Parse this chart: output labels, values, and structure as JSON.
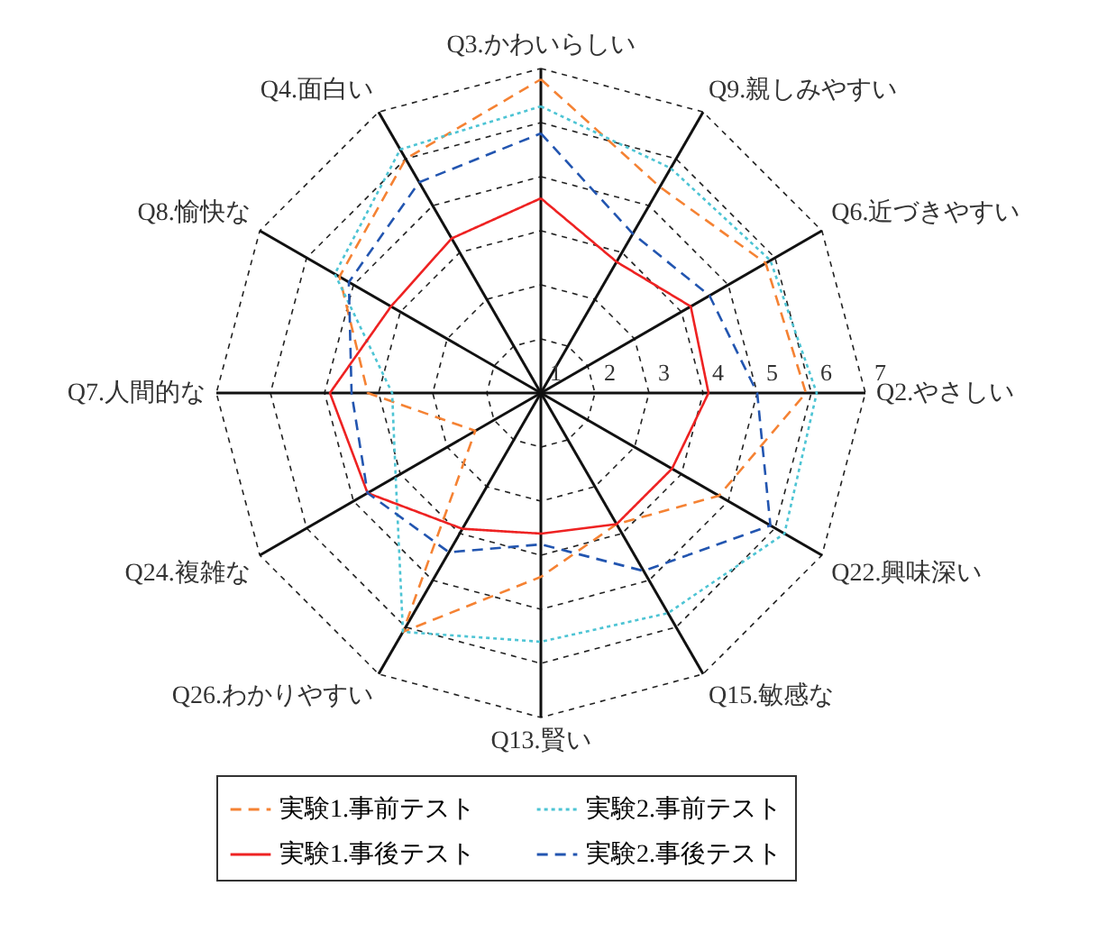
{
  "chart_data": {
    "type": "radar",
    "categories": [
      "Q3.かわいらしい",
      "Q9.親しみやすい",
      "Q6.近づきやすい",
      "Q2.やさしい",
      "Q22.興味深い",
      "Q15.敏感な",
      "Q13.賢い",
      "Q26.わかりやすい",
      "Q24.複雑な",
      "Q7.人間的な",
      "Q8.愉快な",
      "Q4.面白い"
    ],
    "ylim": [
      1,
      7
    ],
    "yticks": [
      1,
      2,
      3,
      4,
      5,
      6,
      7
    ],
    "grid": true,
    "legend": "bottom",
    "series": [
      {
        "name": "実験1.事前テスト",
        "color": "#f58233",
        "line_style": "dashed",
        "values": [
          6.8,
          5.4,
          5.8,
          5.9,
          4.8,
          3.8,
          4.4,
          6.1,
          2.4,
          4.2,
          5.3,
          6.0
        ]
      },
      {
        "name": "実験2.事前テスト",
        "color": "#4dc4d4",
        "line_style": "dotted",
        "values": [
          6.3,
          5.8,
          5.9,
          6.1,
          6.2,
          5.7,
          5.6,
          6.1,
          4.1,
          3.75,
          5.4,
          6.2
        ]
      },
      {
        "name": "実験1.事後テスト",
        "color": "#ee2222",
        "line_style": "solid",
        "values": [
          4.6,
          3.8,
          4.2,
          4.1,
          3.8,
          3.8,
          3.6,
          3.9,
          4.7,
          4.9,
          4.2,
          4.3
        ]
      },
      {
        "name": "実験2.事後テスト",
        "color": "#2255b0",
        "line_style": "dashed",
        "values": [
          5.8,
          4.4,
          4.6,
          5.0,
          5.9,
          4.8,
          3.8,
          4.4,
          4.7,
          4.5,
          5.1,
          5.5
        ]
      }
    ]
  }
}
